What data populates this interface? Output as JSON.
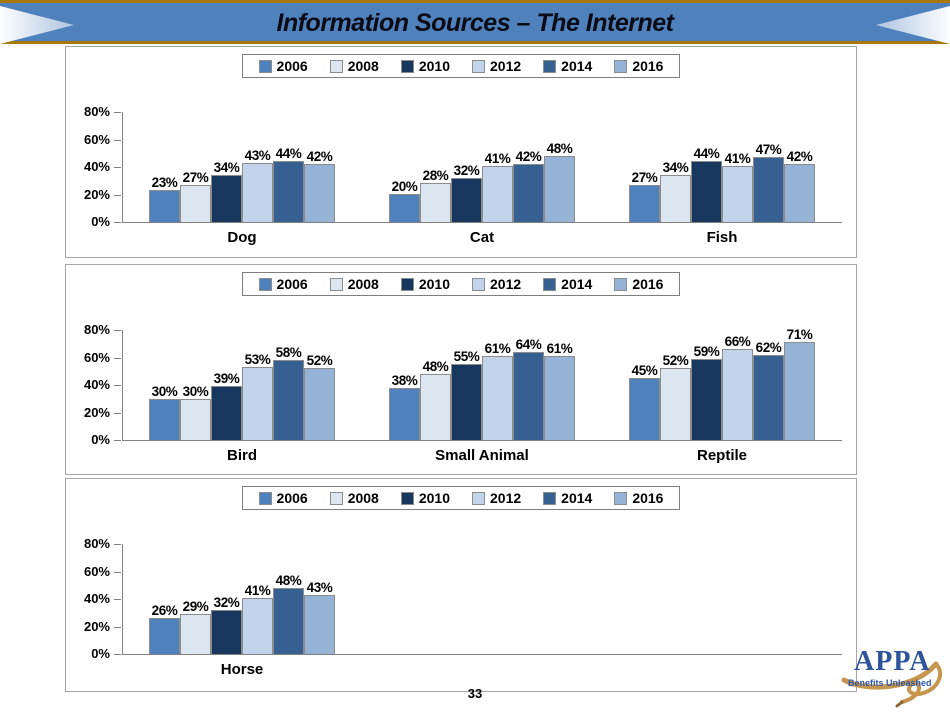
{
  "header": {
    "title": "Information Sources – The Internet"
  },
  "footer": {
    "page_number": "33"
  },
  "logo": {
    "name": "APPA",
    "tagline": "Benefits Unleashed"
  },
  "colors": {
    "band_blue": "#4F81BD",
    "gold_line": "#A8780A",
    "axis_gray": "#808080",
    "bar_border": "#8C8C8C"
  },
  "legend": {
    "years": [
      "2006",
      "2008",
      "2010",
      "2012",
      "2014",
      "2016"
    ],
    "colors": [
      "#4F81BD",
      "#DCE6F1",
      "#17375E",
      "#C2D4EB",
      "#376092",
      "#95B3D7"
    ]
  },
  "axis": {
    "yticks": [
      "80%",
      "60%",
      "40%",
      "20%",
      "0%"
    ],
    "ymax": 80
  },
  "chart_data": [
    {
      "type": "bar",
      "title": "",
      "xlabel": "",
      "ylabel": "",
      "ylim": [
        0,
        80
      ],
      "grid": false,
      "legend_position": "top",
      "categories": [
        "Dog",
        "Cat",
        "Fish"
      ],
      "series": [
        {
          "name": "2006",
          "values": [
            23,
            20,
            27
          ]
        },
        {
          "name": "2008",
          "values": [
            27,
            28,
            34
          ]
        },
        {
          "name": "2010",
          "values": [
            34,
            32,
            44
          ]
        },
        {
          "name": "2012",
          "values": [
            43,
            41,
            41
          ]
        },
        {
          "name": "2014",
          "values": [
            44,
            42,
            47
          ]
        },
        {
          "name": "2016",
          "values": [
            42,
            48,
            42
          ]
        }
      ]
    },
    {
      "type": "bar",
      "title": "",
      "xlabel": "",
      "ylabel": "",
      "ylim": [
        0,
        80
      ],
      "grid": false,
      "legend_position": "top",
      "categories": [
        "Bird",
        "Small Animal",
        "Reptile"
      ],
      "series": [
        {
          "name": "2006",
          "values": [
            30,
            38,
            45
          ]
        },
        {
          "name": "2008",
          "values": [
            30,
            48,
            52
          ]
        },
        {
          "name": "2010",
          "values": [
            39,
            55,
            59
          ]
        },
        {
          "name": "2012",
          "values": [
            53,
            61,
            66
          ]
        },
        {
          "name": "2014",
          "values": [
            58,
            64,
            62
          ]
        },
        {
          "name": "2016",
          "values": [
            52,
            61,
            71
          ]
        }
      ]
    },
    {
      "type": "bar",
      "title": "",
      "xlabel": "",
      "ylabel": "",
      "ylim": [
        0,
        80
      ],
      "grid": false,
      "legend_position": "top",
      "categories": [
        "Horse"
      ],
      "series": [
        {
          "name": "2006",
          "values": [
            26
          ]
        },
        {
          "name": "2008",
          "values": [
            29
          ]
        },
        {
          "name": "2010",
          "values": [
            32
          ]
        },
        {
          "name": "2012",
          "values": [
            41
          ]
        },
        {
          "name": "2014",
          "values": [
            48
          ]
        },
        {
          "name": "2016",
          "values": [
            43
          ]
        }
      ]
    }
  ]
}
